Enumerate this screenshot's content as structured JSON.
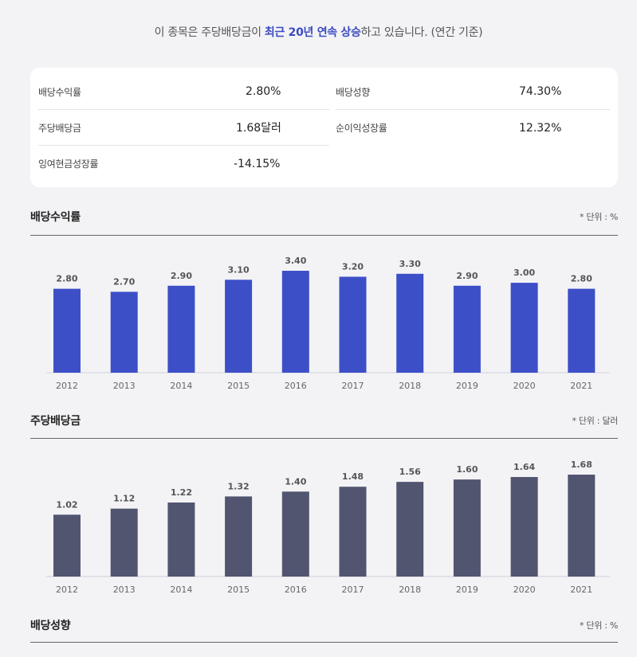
{
  "headline": {
    "pre": "이 종목은 주당배당금이 ",
    "highlight": "최근 20년 연속 상승",
    "post": "하고 있습니다. (연간 기준)"
  },
  "summary": {
    "dividend_yield": {
      "label": "배당수익률",
      "value": "2.80%"
    },
    "payout_ratio": {
      "label": "배당성향",
      "value": "74.30%"
    },
    "dps": {
      "label": "주당배당금",
      "value": "1.68달러"
    },
    "net_income_growth": {
      "label": "순이익성장률",
      "value": "12.32%"
    },
    "fcf_growth": {
      "label": "잉여현금성장률",
      "value": "-14.15%"
    }
  },
  "sections": {
    "yield": {
      "title": "배당수익률",
      "unit": "* 단위 : %"
    },
    "dps": {
      "title": "주당배당금",
      "unit": "* 단위 : 달러"
    },
    "payout": {
      "title": "배당성향",
      "unit": "* 단위 : %"
    }
  },
  "chart_data": [
    {
      "type": "bar",
      "title": "배당수익률",
      "categories": [
        "2012",
        "2013",
        "2014",
        "2015",
        "2016",
        "2017",
        "2018",
        "2019",
        "2020",
        "2021"
      ],
      "values": [
        2.8,
        2.7,
        2.9,
        3.1,
        3.4,
        3.2,
        3.3,
        2.9,
        3.0,
        2.8
      ],
      "labels": [
        "2.80",
        "2.70",
        "2.90",
        "3.10",
        "3.40",
        "3.20",
        "3.30",
        "2.90",
        "3.00",
        "2.80"
      ],
      "color": "#3d4fc7",
      "ylim": [
        0,
        3.4
      ]
    },
    {
      "type": "bar",
      "title": "주당배당금",
      "categories": [
        "2012",
        "2013",
        "2014",
        "2015",
        "2016",
        "2017",
        "2018",
        "2019",
        "2020",
        "2021"
      ],
      "values": [
        1.02,
        1.12,
        1.22,
        1.32,
        1.4,
        1.48,
        1.56,
        1.6,
        1.64,
        1.68
      ],
      "labels": [
        "1.02",
        "1.12",
        "1.22",
        "1.32",
        "1.40",
        "1.48",
        "1.56",
        "1.60",
        "1.64",
        "1.68"
      ],
      "color": "#525570",
      "ylim": [
        0,
        1.68
      ]
    }
  ],
  "colors": {
    "accent": "#3a4bbf",
    "bar_yield": "#3d4fc7",
    "bar_dps": "#525570",
    "background": "#f3f3f6"
  }
}
